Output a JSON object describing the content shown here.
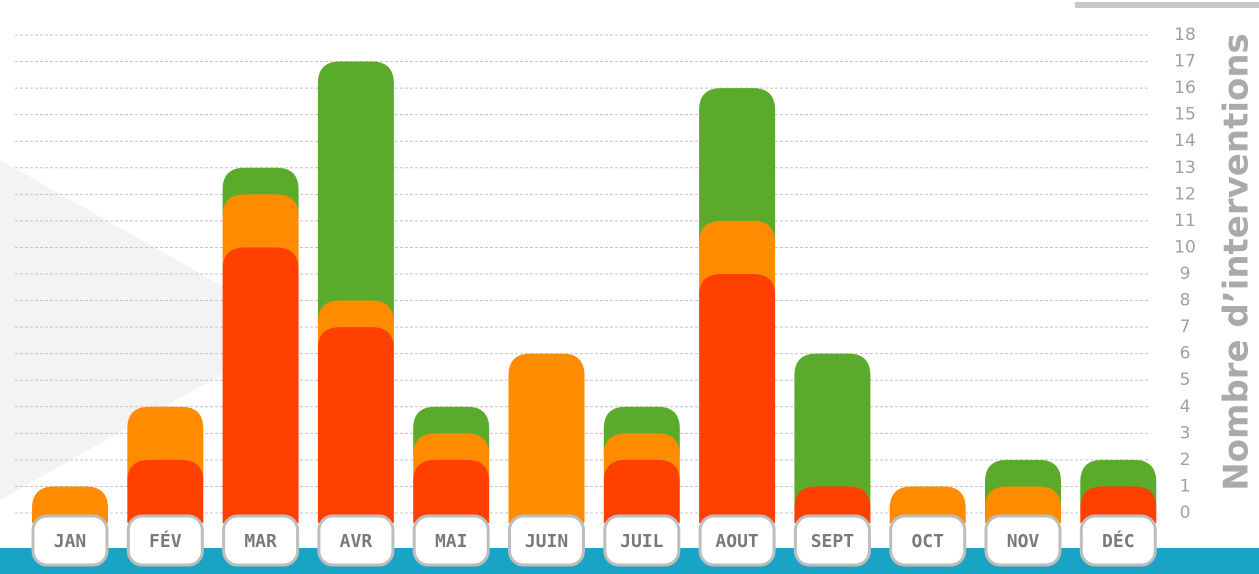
{
  "chart_data": {
    "type": "stacked_bar",
    "y_label": "Nombre d’interventions",
    "categories": [
      "JAN",
      "FÉV",
      "MAR",
      "AVR",
      "MAI",
      "JUIN",
      "JUIL",
      "AOUT",
      "SEPT",
      "OCT",
      "NOV",
      "DÉC"
    ],
    "series": [
      {
        "color": "#ff4000",
        "values": [
          0,
          2,
          10,
          7,
          2,
          0,
          2,
          9,
          1,
          0,
          0,
          1
        ]
      },
      {
        "color": "#ff8c00",
        "values": [
          1,
          2,
          2,
          1,
          1,
          6,
          1,
          2,
          0,
          1,
          1,
          0
        ]
      },
      {
        "color": "#5aab2b",
        "values": [
          0,
          0,
          1,
          9,
          1,
          0,
          1,
          5,
          5,
          0,
          1,
          1
        ]
      }
    ],
    "ylim": [
      0,
      18
    ],
    "yticks": [
      0,
      1,
      2,
      3,
      4,
      5,
      6,
      7,
      8,
      9,
      10,
      11,
      12,
      13,
      14,
      15,
      16,
      17,
      18
    ],
    "grid": true
  }
}
